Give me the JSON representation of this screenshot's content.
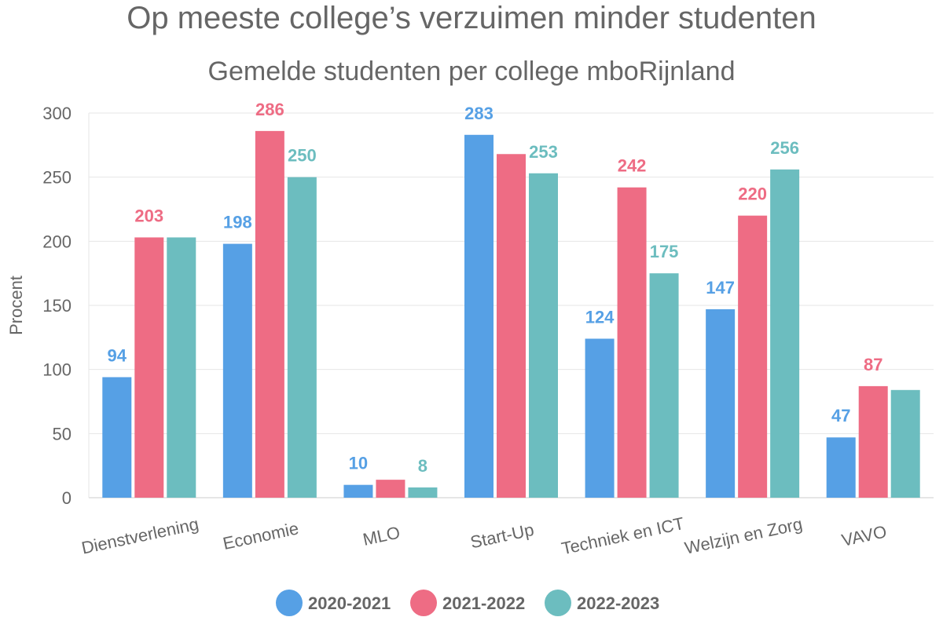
{
  "chart_data": {
    "type": "bar",
    "title": "Op meeste college’s verzuimen minder studenten",
    "subtitle": "Gemelde studenten per college mboRijnland",
    "xlabel": "",
    "ylabel": "Procent",
    "ylim": [
      0,
      300
    ],
    "yticks": [
      0,
      50,
      100,
      150,
      200,
      250,
      300
    ],
    "grid": true,
    "legend_position": "bottom",
    "categories": [
      "Dienstverlening",
      "Economie",
      "MLO",
      "Start-Up",
      "Techniek en ICT",
      "Welzijn en Zorg",
      "VAVO"
    ],
    "series": [
      {
        "name": "2020-2021",
        "color": "#56A0E5",
        "values": [
          94,
          198,
          10,
          283,
          124,
          147,
          47
        ],
        "labels": [
          "94",
          "198",
          "10",
          "283",
          "124",
          "147",
          "47"
        ]
      },
      {
        "name": "2021-2022",
        "color": "#EE6C84",
        "values": [
          203,
          286,
          14,
          268,
          242,
          220,
          87
        ],
        "labels": [
          "203",
          "286",
          "",
          "",
          "242",
          "220",
          "87"
        ]
      },
      {
        "name": "2022-2023",
        "color": "#6CBDBF",
        "values": [
          203,
          250,
          8,
          253,
          175,
          256,
          84
        ],
        "labels": [
          "",
          "250",
          "8",
          "253",
          "175",
          "256",
          ""
        ]
      }
    ]
  }
}
